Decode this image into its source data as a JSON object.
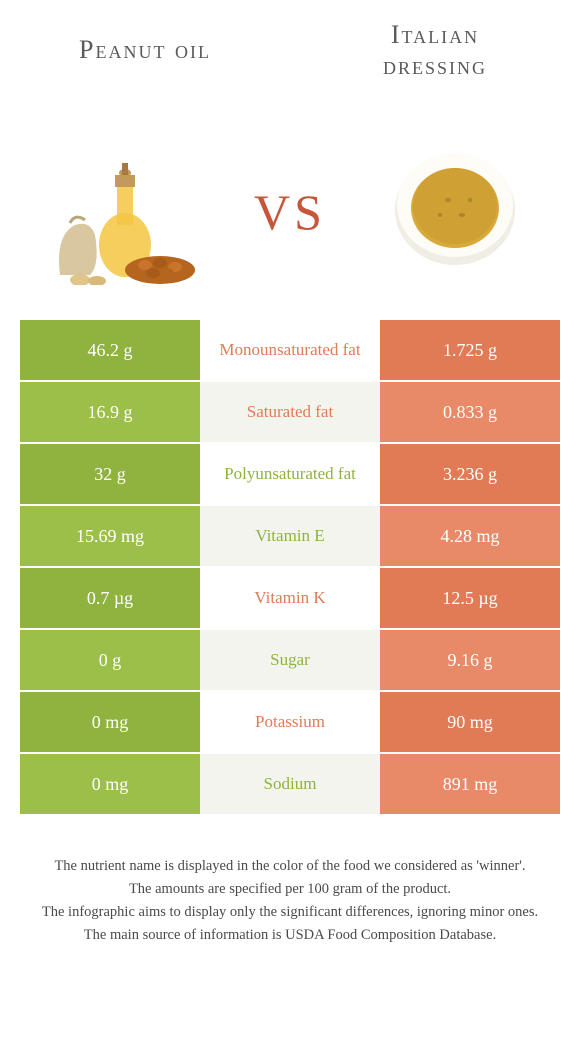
{
  "left_food": {
    "title": "Peanut oil"
  },
  "right_food": {
    "title": "Italian dressing"
  },
  "vs_label": "vs",
  "colors": {
    "left_cell": "#8fb33e",
    "left_cell_alt": "#9cbf4a",
    "right_cell": "#e07b56",
    "right_cell_alt": "#e88a67",
    "mid_bg": "#ffffff",
    "mid_bg_alt": "#f4f4ef",
    "winner_left_text": "#8fb33e",
    "winner_right_text": "#e07b56",
    "vs_color": "#c7553a"
  },
  "rows": [
    {
      "label": "Monounsaturated fat",
      "left": "46.2 g",
      "right": "1.725 g",
      "winner": "right"
    },
    {
      "label": "Saturated fat",
      "left": "16.9 g",
      "right": "0.833 g",
      "winner": "right"
    },
    {
      "label": "Polyunsaturated fat",
      "left": "32 g",
      "right": "3.236 g",
      "winner": "left"
    },
    {
      "label": "Vitamin E",
      "left": "15.69 mg",
      "right": "4.28 mg",
      "winner": "left"
    },
    {
      "label": "Vitamin K",
      "left": "0.7 µg",
      "right": "12.5 µg",
      "winner": "right"
    },
    {
      "label": "Sugar",
      "left": "0 g",
      "right": "9.16 g",
      "winner": "left"
    },
    {
      "label": "Potassium",
      "left": "0 mg",
      "right": "90 mg",
      "winner": "right"
    },
    {
      "label": "Sodium",
      "left": "0 mg",
      "right": "891 mg",
      "winner": "left"
    }
  ],
  "footnotes": [
    "The nutrient name is displayed in the color of the food we considered as 'winner'.",
    "The amounts are specified per 100 gram of the product.",
    "The infographic aims to display only the significant differences, ignoring minor ones.",
    "The main source of information is USDA Food Composition Database."
  ]
}
